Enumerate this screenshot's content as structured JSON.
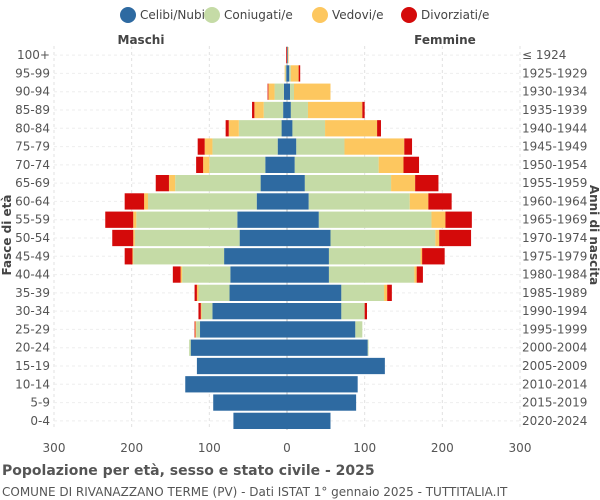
{
  "chart_data": {
    "type": "bar",
    "orientation": "horizontal-population-pyramid",
    "title": "Popolazione per età, sesso e stato civile - 2025",
    "subtitle": "COMUNE DI RIVANAZZANO TERME (PV) - Dati ISTAT 1° gennaio 2025 - TUTTITALIA.IT",
    "left_header": "Maschi",
    "right_header": "Femmine",
    "ylabel_left": "Fasce di età",
    "ylabel_right": "Anni di nascita",
    "xlim": [
      -300,
      300
    ],
    "x_ticks": [
      -300,
      -200,
      -100,
      0,
      100,
      200,
      300
    ],
    "x_tick_labels": [
      "300",
      "200",
      "100",
      "0",
      "100",
      "200",
      "300"
    ],
    "grid": true,
    "legend_position": "top",
    "series": [
      {
        "name": "Celibi/Nubili",
        "color": "#2e6aa1"
      },
      {
        "name": "Coniugati/e",
        "color": "#c5dba6"
      },
      {
        "name": "Vedovi/e",
        "color": "#fdc75f"
      },
      {
        "name": "Divorziati/e",
        "color": "#d40a0a"
      }
    ],
    "categories": [
      "100+",
      "95-99",
      "90-94",
      "85-89",
      "80-84",
      "75-79",
      "70-74",
      "65-69",
      "60-64",
      "55-59",
      "50-54",
      "45-49",
      "40-44",
      "35-39",
      "30-34",
      "25-29",
      "20-24",
      "15-19",
      "10-14",
      "5-9",
      "0-4"
    ],
    "birth_years": [
      "≤ 1924",
      "1925-1929",
      "1930-1934",
      "1935-1939",
      "1940-1944",
      "1945-1949",
      "1950-1954",
      "1955-1959",
      "1960-1964",
      "1965-1969",
      "1970-1974",
      "1975-1979",
      "1980-1984",
      "1985-1989",
      "1990-1994",
      "1995-1999",
      "2000-2004",
      "2005-2009",
      "2010-2014",
      "2015-2019",
      "2020-2024"
    ],
    "males": [
      [
        0,
        0,
        0,
        1
      ],
      [
        1,
        1,
        1,
        0
      ],
      [
        4,
        12,
        8,
        1
      ],
      [
        5,
        25,
        12,
        3
      ],
      [
        7,
        55,
        13,
        4
      ],
      [
        12,
        84,
        10,
        9
      ],
      [
        28,
        72,
        8,
        9
      ],
      [
        34,
        110,
        8,
        17
      ],
      [
        39,
        140,
        5,
        25
      ],
      [
        64,
        130,
        4,
        36
      ],
      [
        61,
        135,
        2,
        27
      ],
      [
        81,
        117,
        1,
        10
      ],
      [
        73,
        62,
        2,
        10
      ],
      [
        74,
        40,
        2,
        3
      ],
      [
        96,
        14,
        1,
        3
      ],
      [
        112,
        5,
        1,
        1
      ],
      [
        124,
        2,
        0,
        0
      ],
      [
        116,
        0,
        0,
        0
      ],
      [
        131,
        0,
        0,
        0
      ],
      [
        95,
        0,
        0,
        0
      ],
      [
        69,
        0,
        0,
        0
      ]
    ],
    "females": [
      [
        1,
        0,
        1,
        0
      ],
      [
        3,
        2,
        10,
        2
      ],
      [
        4,
        5,
        47,
        0
      ],
      [
        5,
        22,
        70,
        3
      ],
      [
        7,
        42,
        67,
        5
      ],
      [
        12,
        62,
        77,
        10
      ],
      [
        10,
        108,
        32,
        20
      ],
      [
        23,
        111,
        31,
        30
      ],
      [
        28,
        130,
        24,
        30
      ],
      [
        41,
        145,
        18,
        34
      ],
      [
        56,
        135,
        5,
        41
      ],
      [
        54,
        118,
        2,
        29
      ],
      [
        54,
        110,
        3,
        8
      ],
      [
        70,
        55,
        4,
        6
      ],
      [
        70,
        30,
        0,
        3
      ],
      [
        88,
        9,
        0,
        0
      ],
      [
        104,
        1,
        0,
        0
      ],
      [
        126,
        0,
        0,
        0
      ],
      [
        91,
        0,
        0,
        0
      ],
      [
        89,
        0,
        0,
        0
      ],
      [
        56,
        0,
        0,
        0
      ]
    ]
  }
}
